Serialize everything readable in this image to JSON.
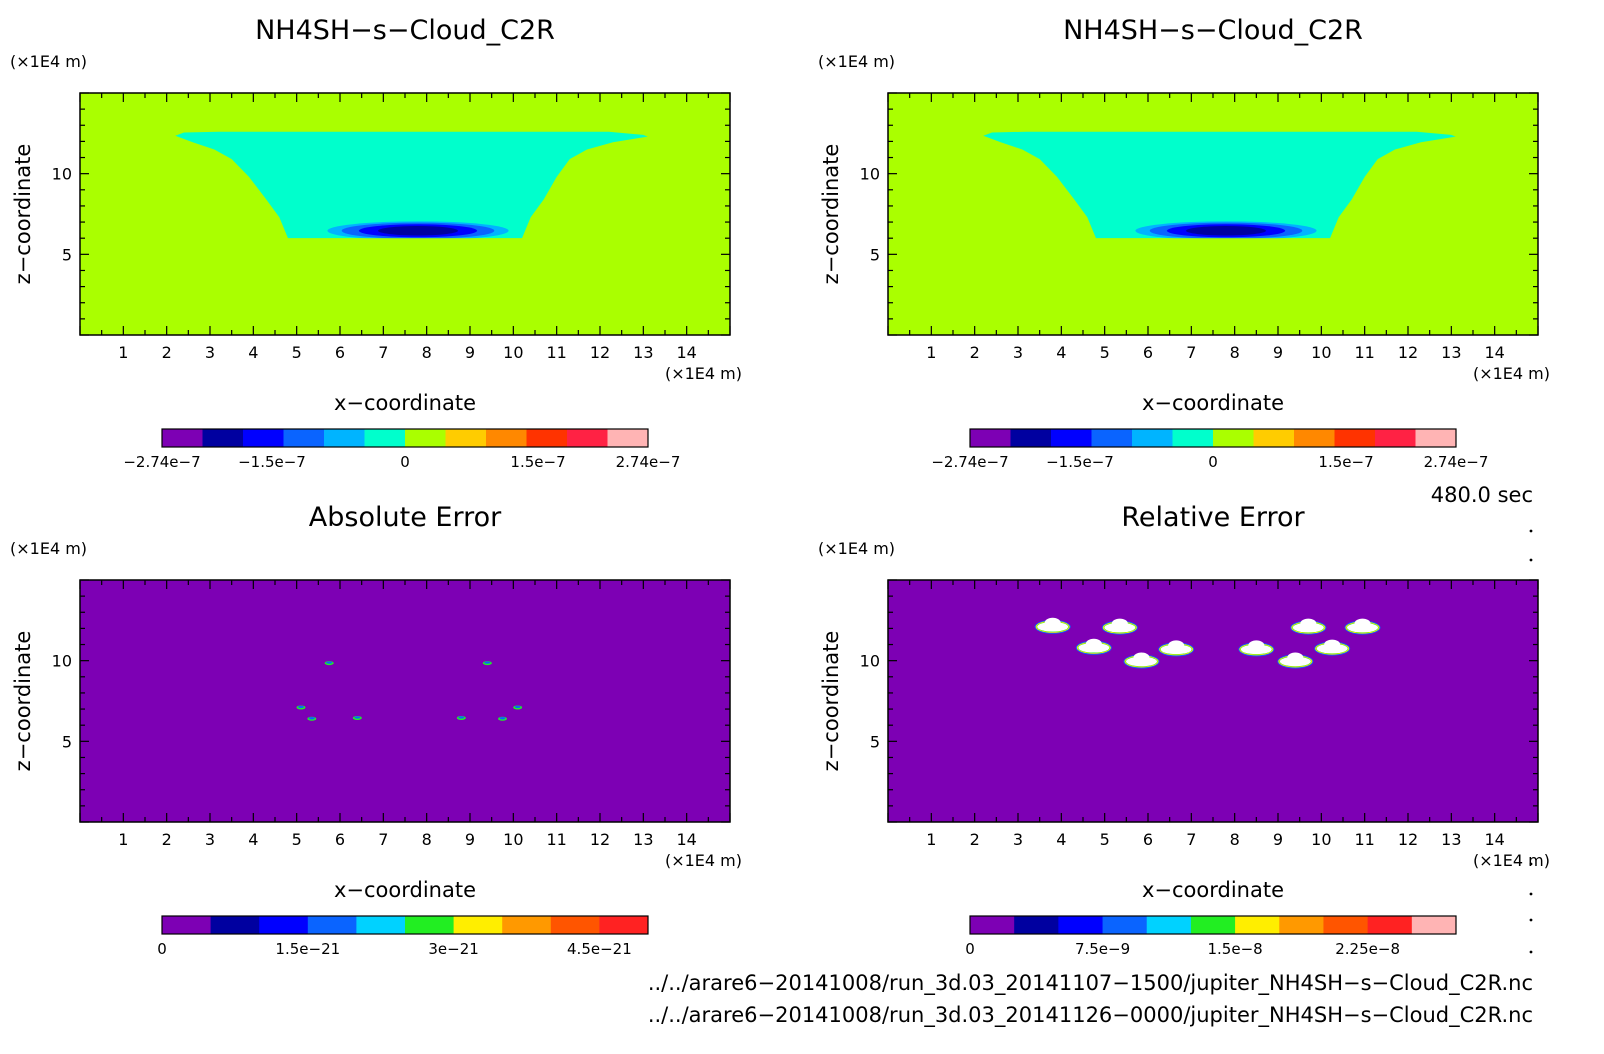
{
  "panels": [
    {
      "title": "NH4SH−s−Cloud_C2R",
      "unit_y": "(×1E4 m)",
      "unit_x": "(×1E4 m)",
      "xlabel": "x−coordinate",
      "ylabel": "z−coordinate",
      "xticks": [
        "1",
        "2",
        "3",
        "4",
        "5",
        "6",
        "7",
        "8",
        "9",
        "10",
        "11",
        "12",
        "13",
        "14"
      ],
      "yticks": [
        "5",
        "10"
      ],
      "colorbar": {
        "colors": [
          "#7d00b4",
          "#0000a0",
          "#0000ff",
          "#0a64ff",
          "#00b4ff",
          "#00ffcc",
          "#aaff00",
          "#ffcc00",
          "#ff8800",
          "#ff3300",
          "#ff2244",
          "#ffb4b4"
        ],
        "labels": [
          "−2.74e−7",
          "−1.5e−7",
          "0",
          "1.5e−7",
          "2.74e−7"
        ],
        "label_values": [
          -2.74e-07,
          -1.5e-07,
          0,
          1.5e-07,
          2.74e-07
        ],
        "range": [
          -2.74e-07,
          2.74e-07
        ]
      }
    },
    {
      "title": "NH4SH−s−Cloud_C2R",
      "unit_y": "(×1E4 m)",
      "unit_x": "(×1E4 m)",
      "xlabel": "x−coordinate",
      "ylabel": "z−coordinate",
      "xticks": [
        "1",
        "2",
        "3",
        "4",
        "5",
        "6",
        "7",
        "8",
        "9",
        "10",
        "11",
        "12",
        "13",
        "14"
      ],
      "yticks": [
        "5",
        "10"
      ],
      "colorbar": {
        "colors": [
          "#7d00b4",
          "#0000a0",
          "#0000ff",
          "#0a64ff",
          "#00b4ff",
          "#00ffcc",
          "#aaff00",
          "#ffcc00",
          "#ff8800",
          "#ff3300",
          "#ff2244",
          "#ffb4b4"
        ],
        "labels": [
          "−2.74e−7",
          "−1.5e−7",
          "0",
          "1.5e−7",
          "2.74e−7"
        ],
        "label_values": [
          -2.74e-07,
          -1.5e-07,
          0,
          1.5e-07,
          2.74e-07
        ],
        "range": [
          -2.74e-07,
          2.74e-07
        ]
      }
    },
    {
      "title": "Absolute Error",
      "unit_y": "(×1E4 m)",
      "unit_x": "(×1E4 m)",
      "xlabel": "x−coordinate",
      "ylabel": "z−coordinate",
      "xticks": [
        "1",
        "2",
        "3",
        "4",
        "5",
        "6",
        "7",
        "8",
        "9",
        "10",
        "11",
        "12",
        "13",
        "14"
      ],
      "yticks": [
        "5",
        "10"
      ],
      "colorbar": {
        "colors": [
          "#7d00b4",
          "#0000a0",
          "#0000ff",
          "#0a64ff",
          "#00d2ff",
          "#22ee22",
          "#ffee00",
          "#ff9900",
          "#ff5500",
          "#ff2222"
        ],
        "labels": [
          "0",
          "1.5e−21",
          "3e−21",
          "4.5e−21"
        ],
        "label_values": [
          0,
          1.5e-21,
          3e-21,
          4.5e-21
        ],
        "range": [
          0,
          5e-21
        ]
      }
    },
    {
      "title": "Relative Error",
      "unit_y": "(×1E4 m)",
      "unit_x": "(×1E4 m)",
      "xlabel": "x−coordinate",
      "ylabel": "z−coordinate",
      "xticks": [
        "1",
        "2",
        "3",
        "4",
        "5",
        "6",
        "7",
        "8",
        "9",
        "10",
        "11",
        "12",
        "13",
        "14"
      ],
      "yticks": [
        "5",
        "10"
      ],
      "colorbar": {
        "colors": [
          "#7d00b4",
          "#0000a0",
          "#0000ff",
          "#0a64ff",
          "#00d2ff",
          "#22ee22",
          "#ffee00",
          "#ff9900",
          "#ff5500",
          "#ff2222",
          "#ffb4b4"
        ],
        "labels": [
          "0",
          "7.5e−9",
          "1.5e−8",
          "2.25e−8"
        ],
        "label_values": [
          0,
          7.5e-09,
          1.5e-08,
          2.25e-08
        ],
        "range": [
          0,
          2.75e-08
        ]
      }
    }
  ],
  "time_label": "480.0 sec",
  "footer": [
    "../../arare6−20141008/run_3d.03_20141107−1500/jupiter_NH4SH−s−Cloud_C2R.nc",
    "../../arare6−20141008/run_3d.03_20141126−0000/jupiter_NH4SH−s−Cloud_C2R.nc"
  ],
  "chart_data": [
    {
      "type": "heatmap",
      "title": "NH4SH−s−Cloud_C2R",
      "xlabel": "x−coordinate",
      "ylabel": "z−coordinate",
      "xlim": [
        0,
        15
      ],
      "ylim": [
        0,
        15
      ],
      "background_value": 0,
      "regions": [
        {
          "name": "cloud_layer",
          "value": -5e-08,
          "x_range": [
            2.2,
            13.1
          ],
          "z_range": [
            6,
            12.5
          ]
        },
        {
          "name": "cloud_base_minimum",
          "value": -2.74e-07,
          "x_center": 7.8,
          "z_center": 6.4
        }
      ]
    },
    {
      "type": "heatmap",
      "title": "NH4SH−s−Cloud_C2R",
      "xlabel": "x−coordinate",
      "ylabel": "z−coordinate",
      "xlim": [
        0,
        15
      ],
      "ylim": [
        0,
        15
      ],
      "background_value": 0,
      "regions": [
        {
          "name": "cloud_layer",
          "value": -5e-08,
          "x_range": [
            2.2,
            13.1
          ],
          "z_range": [
            6,
            12.5
          ]
        },
        {
          "name": "cloud_base_minimum",
          "value": -2.74e-07,
          "x_center": 7.8,
          "z_center": 6.4
        }
      ]
    },
    {
      "type": "heatmap",
      "title": "Absolute Error",
      "xlabel": "x−coordinate",
      "ylabel": "z−coordinate",
      "xlim": [
        0,
        15
      ],
      "ylim": [
        0,
        15
      ],
      "background_value": 0,
      "spots": [
        {
          "x": 5.75,
          "z": 9.85
        },
        {
          "x": 9.4,
          "z": 9.85
        },
        {
          "x": 5.1,
          "z": 7.1
        },
        {
          "x": 5.35,
          "z": 6.4
        },
        {
          "x": 6.4,
          "z": 6.45
        },
        {
          "x": 8.8,
          "z": 6.45
        },
        {
          "x": 9.75,
          "z": 6.4
        },
        {
          "x": 10.1,
          "z": 7.1
        }
      ]
    },
    {
      "type": "heatmap",
      "title": "Relative Error",
      "xlabel": "x−coordinate",
      "ylabel": "z−coordinate",
      "xlim": [
        0,
        15
      ],
      "ylim": [
        0,
        15
      ],
      "background_value": 0,
      "blobs": [
        {
          "x": 3.8,
          "z": 12.1
        },
        {
          "x": 5.35,
          "z": 12.05
        },
        {
          "x": 4.75,
          "z": 10.8
        },
        {
          "x": 5.85,
          "z": 9.95
        },
        {
          "x": 6.65,
          "z": 10.7
        },
        {
          "x": 8.5,
          "z": 10.7
        },
        {
          "x": 9.4,
          "z": 9.95
        },
        {
          "x": 9.7,
          "z": 12.05
        },
        {
          "x": 10.95,
          "z": 12.05
        },
        {
          "x": 10.25,
          "z": 10.75
        }
      ]
    }
  ]
}
